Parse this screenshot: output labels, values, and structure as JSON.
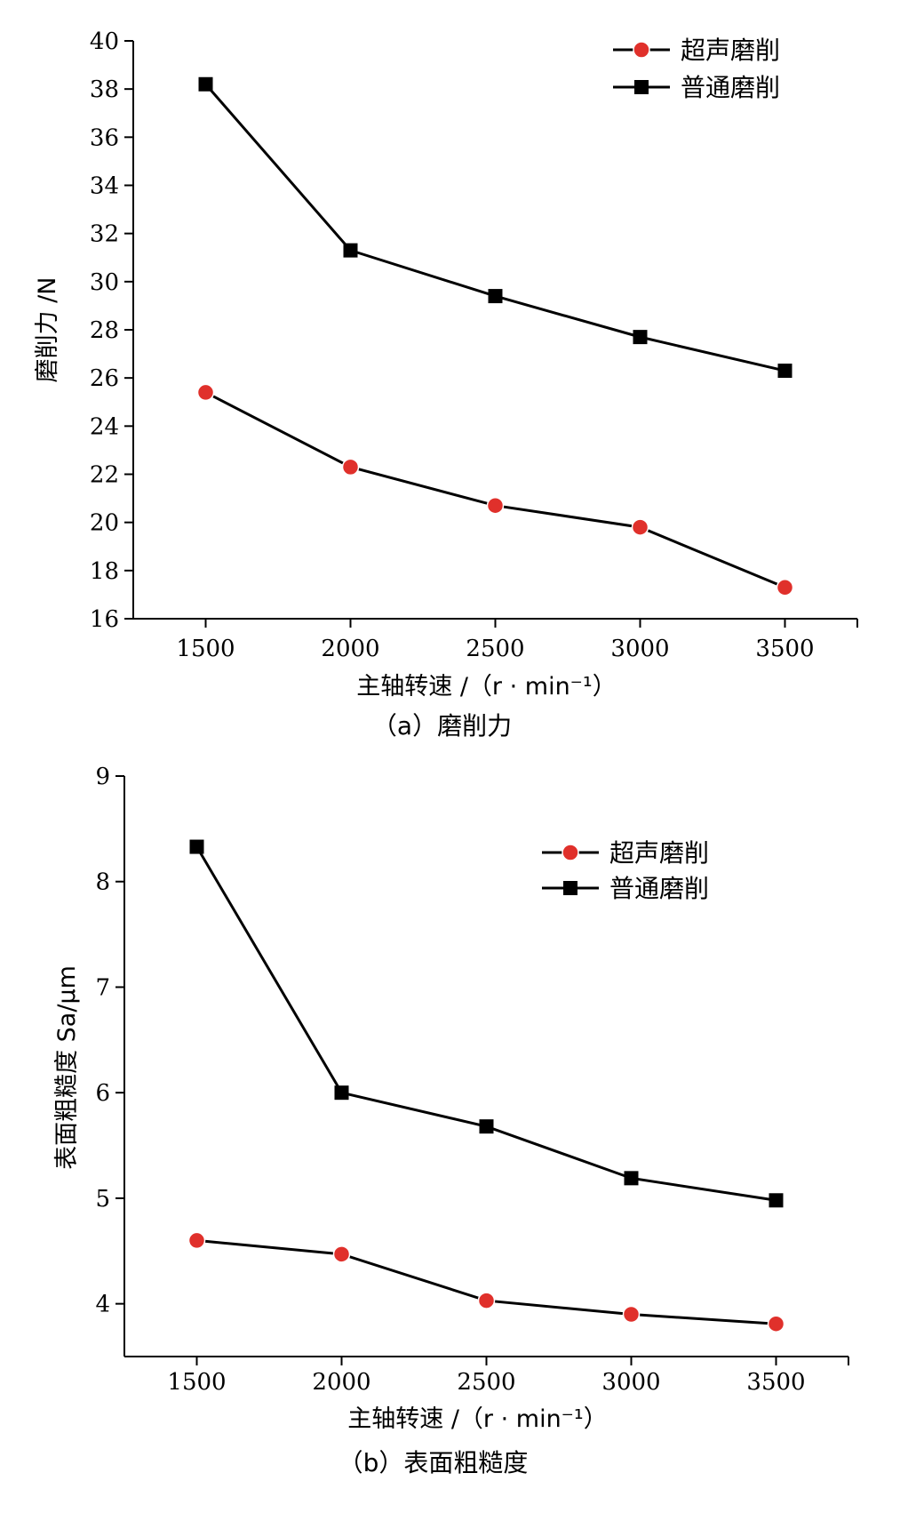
{
  "chart_data": [
    {
      "type": "line",
      "caption": "（a）磨削力",
      "xlabel": "主轴转速 /（r · min⁻¹）",
      "ylabel": "磨削力 /N",
      "x": [
        1500,
        2000,
        2500,
        3000,
        3500
      ],
      "x_ticks": [
        "1500",
        "2000",
        "2500",
        "3000",
        "3500"
      ],
      "xlim": [
        1250,
        3750
      ],
      "ylim": [
        16,
        40
      ],
      "y_ticks": [
        "16",
        "18",
        "20",
        "22",
        "24",
        "26",
        "28",
        "30",
        "32",
        "34",
        "36",
        "38",
        "40"
      ],
      "legend_position": "top-right",
      "series": [
        {
          "name": "超声磨削",
          "marker": "circle",
          "color": "#e0302b",
          "values": [
            25.4,
            22.3,
            20.7,
            19.8,
            17.3
          ]
        },
        {
          "name": "普通磨削",
          "marker": "square",
          "color": "#000000",
          "values": [
            38.2,
            31.3,
            29.4,
            27.7,
            26.3
          ]
        }
      ]
    },
    {
      "type": "line",
      "caption": "（b）表面粗糙度",
      "xlabel": "主轴转速 /（r · min⁻¹）",
      "ylabel": "表面粗糙度 Sa/μm",
      "x": [
        1500,
        2000,
        2500,
        3000,
        3500
      ],
      "x_ticks": [
        "1500",
        "2000",
        "2500",
        "3000",
        "3500"
      ],
      "xlim": [
        1250,
        3750
      ],
      "ylim": [
        3.5,
        9
      ],
      "y_ticks": [
        "4",
        "5",
        "6",
        "7",
        "8",
        "9"
      ],
      "legend_position": "top-right",
      "series": [
        {
          "name": "超声磨削",
          "marker": "circle",
          "color": "#e0302b",
          "values": [
            4.6,
            4.47,
            4.03,
            3.9,
            3.81
          ]
        },
        {
          "name": "普通磨削",
          "marker": "square",
          "color": "#000000",
          "values": [
            8.33,
            6.0,
            5.68,
            5.19,
            4.98
          ]
        }
      ]
    }
  ]
}
